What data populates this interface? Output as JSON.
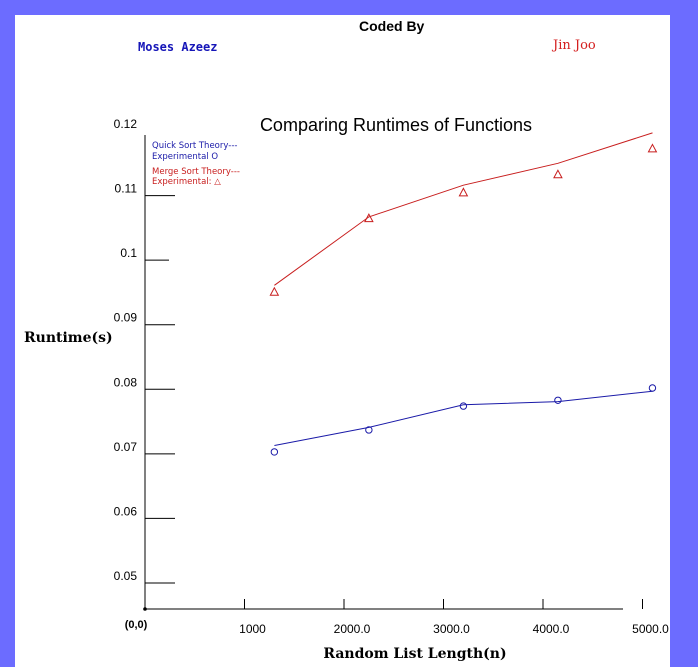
{
  "header": {
    "coded_by": "Coded By",
    "author_left": "Moses Azeez",
    "author_right": "Jin Joo"
  },
  "colors": {
    "background": "#6c6cff",
    "quick_sort": "#1a1aa8",
    "merge_sort": "#c81e1e"
  },
  "chart_data": {
    "type": "line",
    "title": "Comparing Runtimes of Functions",
    "xlabel": "Random List Length(n)",
    "ylabel": "Runtime(s)",
    "origin_label": "(0,0)",
    "xlim": [
      0,
      5200
    ],
    "ylim": [
      0.045,
      0.12
    ],
    "grid": false,
    "x_ticks": [
      {
        "value": 1000,
        "label": "1000"
      },
      {
        "value": 2000,
        "label": "2000.0"
      },
      {
        "value": 3000,
        "label": "3000.0"
      },
      {
        "value": 4000,
        "label": "4000.0"
      },
      {
        "value": 5000,
        "label": "5000.0"
      }
    ],
    "y_ticks": [
      {
        "value": 0.05,
        "label": "0.05"
      },
      {
        "value": 0.06,
        "label": "0.06"
      },
      {
        "value": 0.07,
        "label": "0.07"
      },
      {
        "value": 0.08,
        "label": "0.08"
      },
      {
        "value": 0.09,
        "label": "0.09"
      },
      {
        "value": 0.1,
        "label": "0.1"
      },
      {
        "value": 0.11,
        "label": "0.11"
      },
      {
        "value": 0.12,
        "label": "0.12"
      }
    ],
    "legend": [
      {
        "text": "Quick Sort Theory---",
        "series": "quick"
      },
      {
        "text": "Experimental O",
        "series": "quick"
      },
      {
        "text": "Merge Sort Theory---",
        "series": "merge"
      },
      {
        "text": "Experimental: △",
        "series": "merge"
      }
    ],
    "legend_position": "top-left",
    "series": [
      {
        "id": "quick-theory",
        "kind": "line",
        "color": "#1a1aa8",
        "x": [
          1300,
          2250,
          3200,
          4150,
          5100
        ],
        "y": [
          0.0713,
          0.0741,
          0.0776,
          0.0781,
          0.0797
        ]
      },
      {
        "id": "quick-experimental",
        "kind": "circle",
        "color": "#1a1aa8",
        "x": [
          1300,
          2250,
          3200,
          4150,
          5100
        ],
        "y": [
          0.0703,
          0.0737,
          0.0774,
          0.0783,
          0.0802
        ]
      },
      {
        "id": "merge-theory",
        "kind": "line",
        "color": "#c81e1e",
        "x": [
          1300,
          2250,
          3200,
          4150,
          5100
        ],
        "y": [
          0.0961,
          0.1067,
          0.1116,
          0.115,
          0.1197
        ]
      },
      {
        "id": "merge-experimental",
        "kind": "triangle",
        "color": "#c81e1e",
        "x": [
          1300,
          2250,
          3200,
          4150,
          5100
        ],
        "y": [
          0.0951,
          0.1065,
          0.1105,
          0.1133,
          0.1173
        ]
      }
    ]
  }
}
